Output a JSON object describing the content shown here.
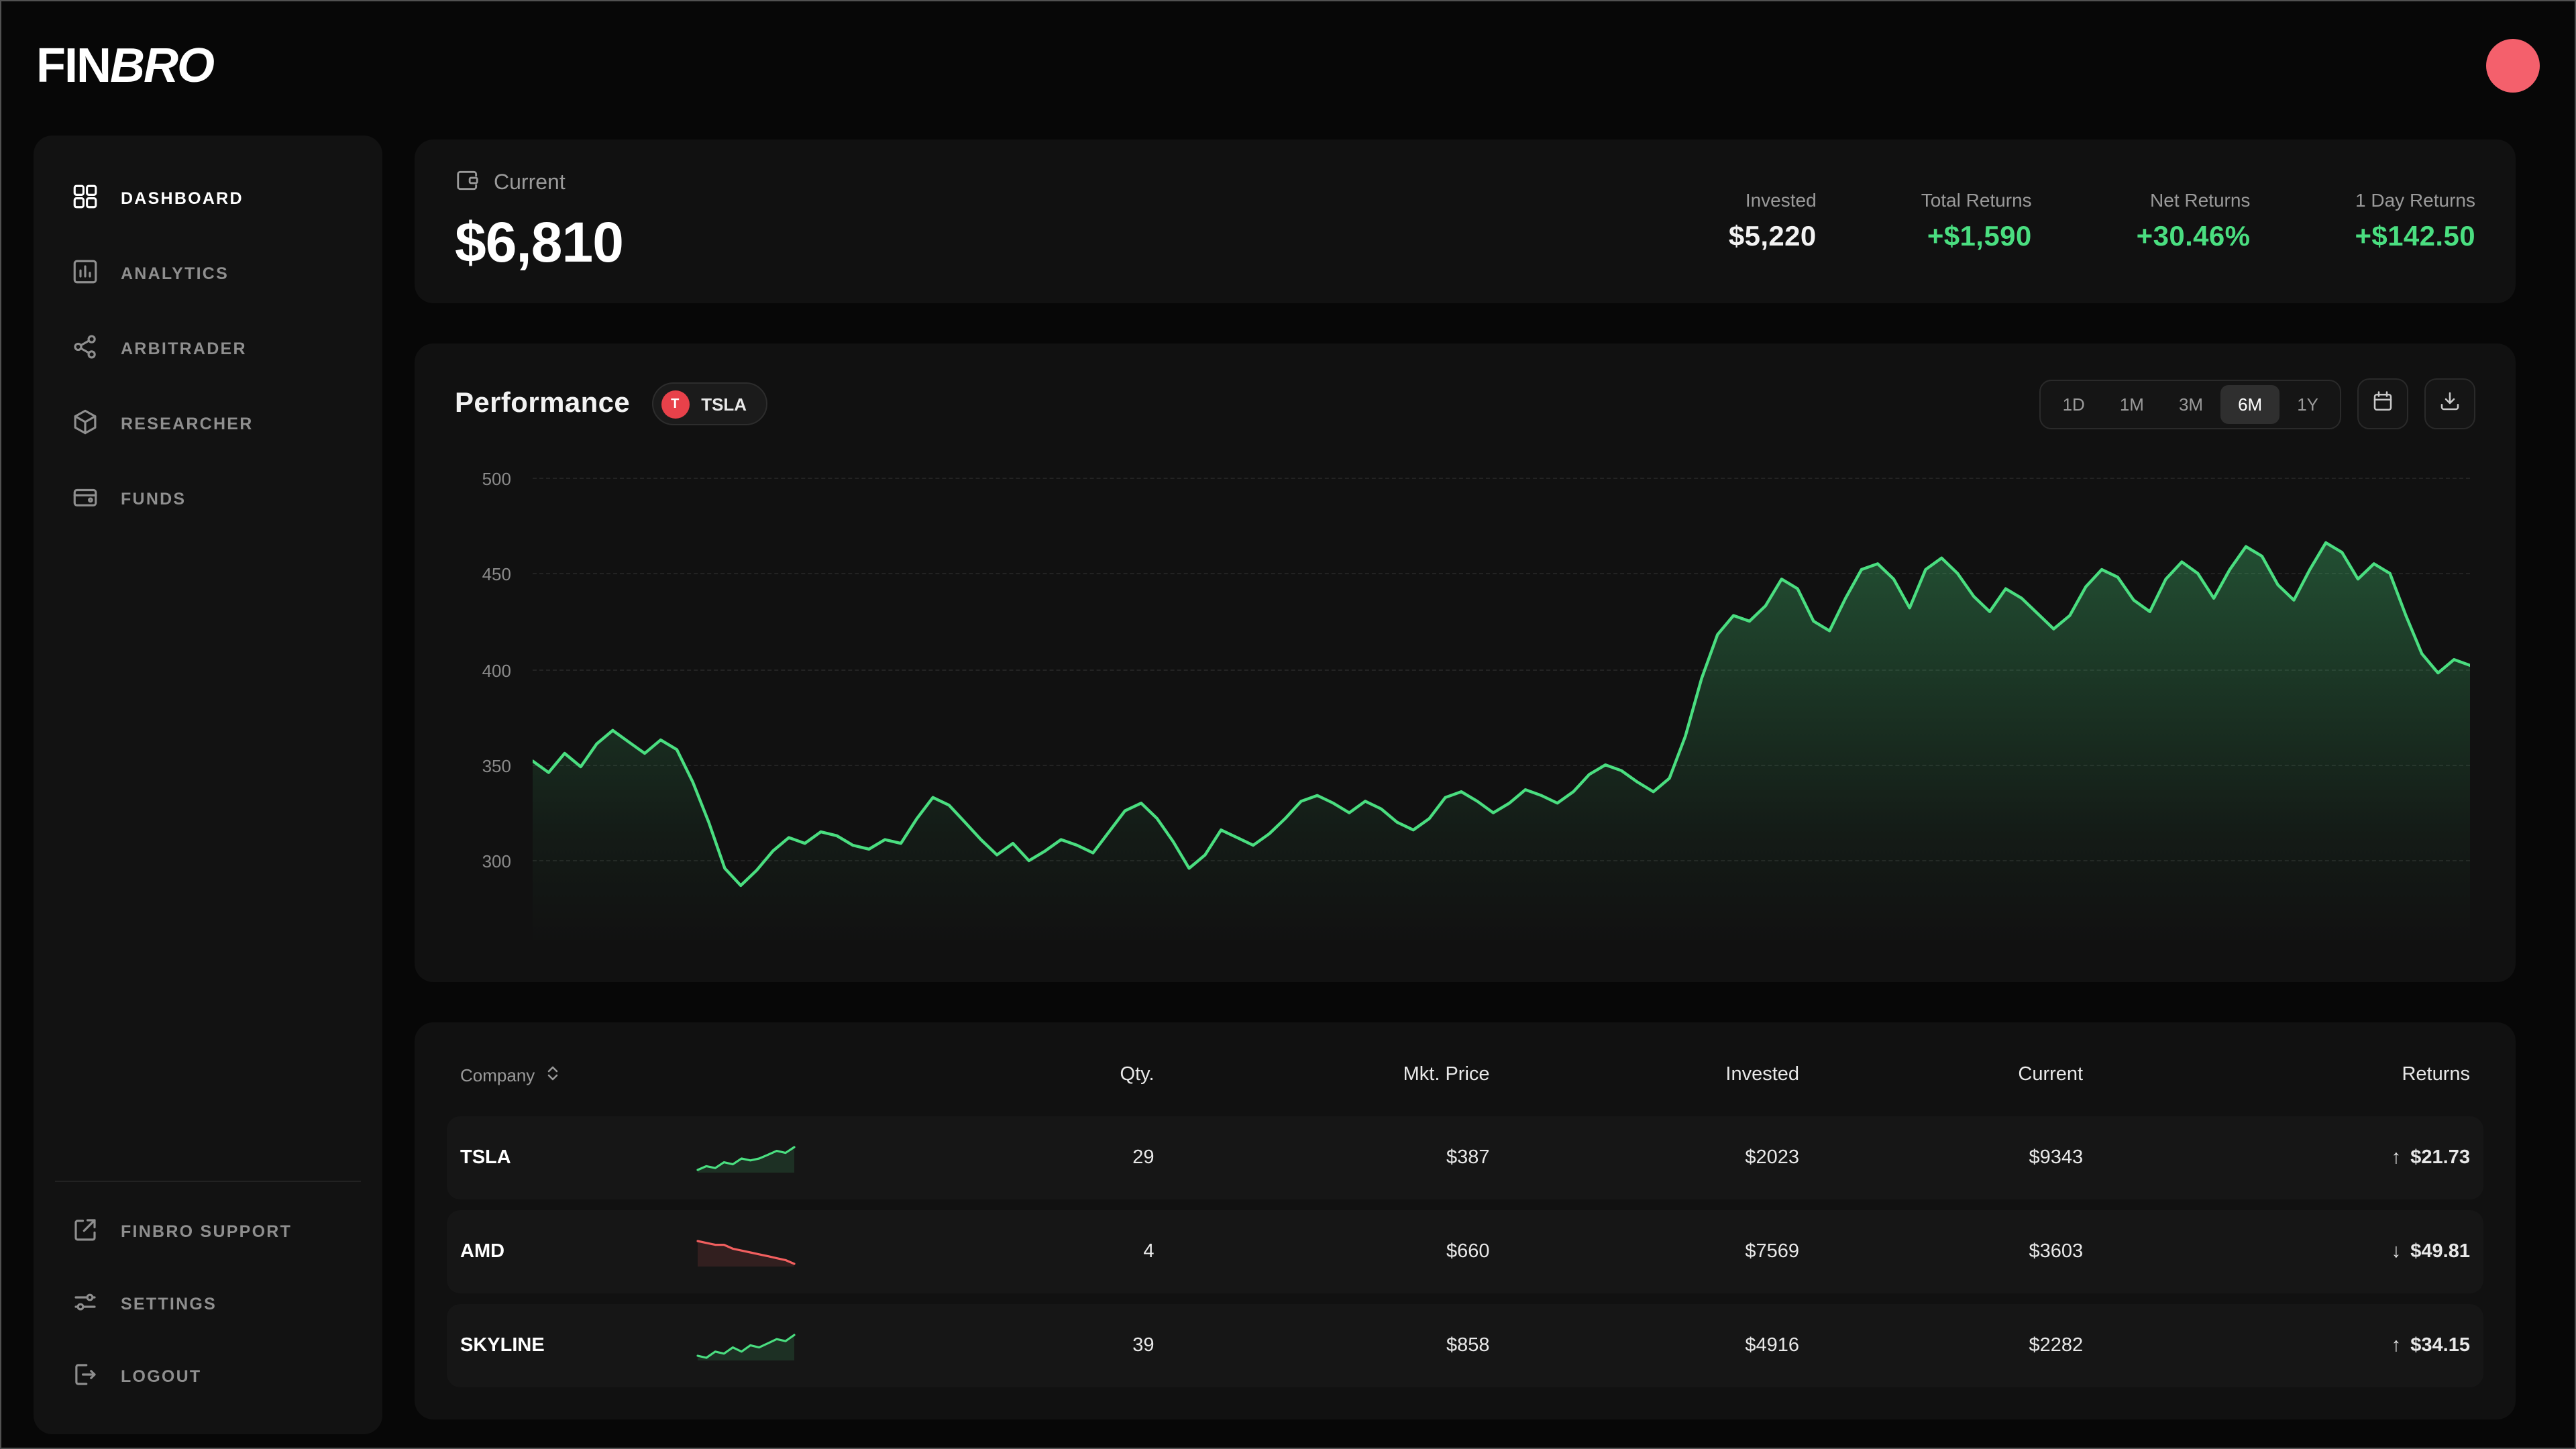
{
  "brand": {
    "logo_fin": "FIN",
    "logo_bro": "BRO"
  },
  "sidebar": {
    "items": [
      {
        "label": "DASHBOARD",
        "active": true
      },
      {
        "label": "ANALYTICS",
        "active": false
      },
      {
        "label": "ARBITRADER",
        "active": false
      },
      {
        "label": "RESEARCHER",
        "active": false
      },
      {
        "label": "FUNDS",
        "active": false
      }
    ],
    "footer_items": [
      {
        "label": "FINBRO SUPPORT"
      },
      {
        "label": "SETTINGS"
      },
      {
        "label": "LOGOUT"
      }
    ]
  },
  "summary": {
    "current_label": "Current",
    "current_value": "$6,810",
    "stats": [
      {
        "label": "Invested",
        "value": "$5,220",
        "tone": "white"
      },
      {
        "label": "Total Returns",
        "value": "+$1,590",
        "tone": "green"
      },
      {
        "label": "Net Returns",
        "value": "+30.46%",
        "tone": "green"
      },
      {
        "label": "1 Day Returns",
        "value": "+$142.50",
        "tone": "green"
      }
    ]
  },
  "performance": {
    "title": "Performance",
    "ticker": {
      "symbol": "TSLA",
      "letter": "T"
    },
    "ranges": [
      "1D",
      "1M",
      "3M",
      "6M",
      "1Y"
    ],
    "active_range": "6M"
  },
  "chart_data": {
    "type": "area",
    "title": "Performance",
    "xlabel": "",
    "ylabel": "",
    "ylim": [
      280,
      500
    ],
    "yticks": [
      500,
      450,
      400,
      350,
      300
    ],
    "grid": true,
    "legend": false,
    "line_color": "#4ade80",
    "series": [
      {
        "name": "TSLA",
        "values": [
          352,
          346,
          356,
          349,
          361,
          368,
          362,
          356,
          363,
          358,
          341,
          320,
          296,
          287,
          295,
          305,
          312,
          309,
          315,
          313,
          308,
          306,
          311,
          309,
          322,
          333,
          329,
          320,
          311,
          303,
          309,
          300,
          305,
          311,
          308,
          304,
          315,
          326,
          330,
          322,
          310,
          296,
          303,
          316,
          312,
          308,
          314,
          322,
          331,
          334,
          330,
          325,
          331,
          327,
          320,
          316,
          322,
          333,
          336,
          331,
          325,
          330,
          337,
          334,
          330,
          336,
          345,
          350,
          347,
          341,
          336,
          343,
          365,
          395,
          418,
          428,
          425,
          433,
          447,
          442,
          425,
          420,
          437,
          452,
          455,
          447,
          432,
          452,
          458,
          450,
          438,
          430,
          442,
          437,
          429,
          421,
          428,
          443,
          452,
          448,
          436,
          430,
          447,
          456,
          450,
          437,
          452,
          464,
          459,
          444,
          436,
          452,
          466,
          461,
          447,
          455,
          450,
          428,
          408,
          398,
          405,
          402
        ]
      }
    ]
  },
  "holdings": {
    "columns": [
      "Company",
      "Qty.",
      "Mkt. Price",
      "Invested",
      "Current",
      "Returns"
    ],
    "rows": [
      {
        "company": "TSLA",
        "trend": "up",
        "spark": [
          4,
          5,
          4.5,
          6,
          5.5,
          7,
          6.5,
          7,
          8,
          9,
          8.5,
          10
        ],
        "qty": "29",
        "mkt_price": "$387",
        "invested": "$2023",
        "current": "$9343",
        "current_tone": "green",
        "arrow": "↑",
        "returns": "$21.73",
        "returns_tone": "green"
      },
      {
        "company": "AMD",
        "trend": "down",
        "spark": [
          10,
          9.5,
          9,
          9,
          8,
          7.5,
          7,
          6.5,
          6,
          5.5,
          5,
          4
        ],
        "qty": "4",
        "mkt_price": "$660",
        "invested": "$7569",
        "current": "$3603",
        "current_tone": "red",
        "arrow": "↓",
        "returns": "$49.81",
        "returns_tone": "red"
      },
      {
        "company": "SKYLINE",
        "trend": "up",
        "spark": [
          5,
          4.5,
          6,
          5.5,
          7,
          6,
          7.5,
          7,
          8,
          9,
          8.5,
          10
        ],
        "qty": "39",
        "mkt_price": "$858",
        "invested": "$4916",
        "current": "$2282",
        "current_tone": "green",
        "arrow": "↑",
        "returns": "$34.15",
        "returns_tone": "green"
      }
    ]
  },
  "colors": {
    "green": "#4ade80",
    "red": "#f25f5f",
    "avatar": "#f4606c",
    "ticker_badge": "#e8414a"
  }
}
